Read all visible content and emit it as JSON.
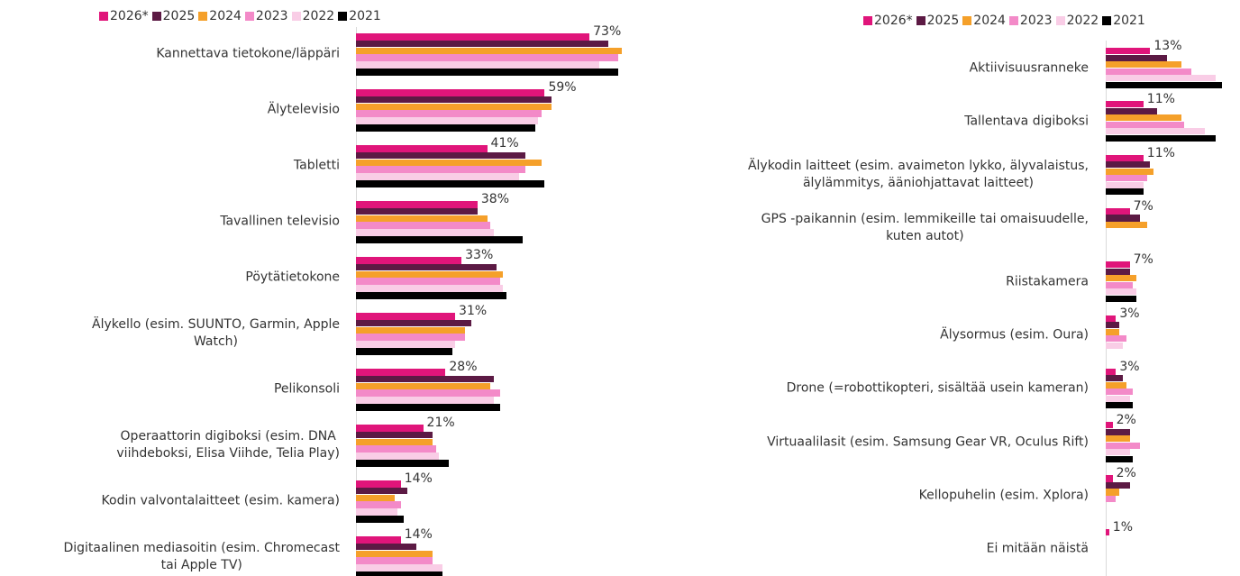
{
  "chart_data": [
    {
      "type": "bar",
      "orientation": "horizontal",
      "xlim": [
        0,
        100
      ],
      "categories": [
        "Kannettava tietokone/läppäri",
        "Älytelevisio",
        "Tabletti",
        "Tavallinen televisio",
        "Pöytätietokone",
        "Älykello (esim. SUUNTO, Garmin, Apple\nWatch)",
        "Pelikonsoli",
        "Operaattorin digiboksi (esim. DNA\nviihdeboksi, Elisa Viihde, Telia Play)",
        "Kodin valvontalaitteet (esim. kamera)",
        "Digitaalinen mediasoitin (esim. Chromecast\ntai Apple TV)"
      ],
      "series": [
        {
          "name": "2026*",
          "color": "#e0157a",
          "values": [
            73,
            59,
            41,
            38,
            33,
            31,
            28,
            21,
            14,
            14
          ],
          "value_labels": [
            "73%",
            "59%",
            "41%",
            "38%",
            "33%",
            "31%",
            "28%",
            "21%",
            "14%",
            "14%"
          ]
        },
        {
          "name": "2025",
          "color": "#5c1a44",
          "values": [
            79,
            61,
            53,
            38,
            44,
            36,
            43,
            24,
            16,
            19
          ]
        },
        {
          "name": "2024",
          "color": "#f5a02a",
          "values": [
            83,
            61,
            58,
            41,
            46,
            34,
            42,
            24,
            12,
            24
          ]
        },
        {
          "name": "2023",
          "color": "#f38ac8",
          "values": [
            82,
            58,
            53,
            42,
            45,
            34,
            45,
            25,
            14,
            24
          ]
        },
        {
          "name": "2022",
          "color": "#f9cde6",
          "values": [
            76,
            57,
            51,
            43,
            46,
            31,
            43,
            26,
            13,
            27
          ]
        },
        {
          "name": "2021",
          "color": "#000000",
          "values": [
            82,
            56,
            59,
            52,
            47,
            30,
            45,
            29,
            15,
            27
          ]
        }
      ]
    },
    {
      "type": "bar",
      "orientation": "horizontal",
      "xlim": [
        0,
        100
      ],
      "categories": [
        "Aktiivisuusranneke",
        "Tallentava digiboksi",
        "Älykodin laitteet (esim. avaimeton lykko, älyvalaistus,\nälylämmitys, ääniohjattavat laitteet)",
        "GPS -paikannin (esim. lemmikeille tai omaisuudelle,\nkuten autot)",
        "Riistakamera",
        "Älysormus (esim. Oura)",
        "Drone (=robottikopteri, sisältää usein kameran)",
        "Virtuaalilasit (esim. Samsung Gear VR, Oculus Rift)",
        "Kellopuhelin (esim. Xplora)",
        "Ei mitään näistä"
      ],
      "series": [
        {
          "name": "2026*",
          "color": "#e0157a",
          "values": [
            13,
            11,
            11,
            7,
            7,
            3,
            3,
            2,
            2,
            1
          ],
          "value_labels": [
            "13%",
            "11%",
            "11%",
            "7%",
            "7%",
            "3%",
            "3%",
            "2%",
            "2%",
            "1%"
          ]
        },
        {
          "name": "2025",
          "color": "#5c1a44",
          "values": [
            18,
            15,
            13,
            10,
            7,
            4,
            5,
            7,
            7,
            null
          ]
        },
        {
          "name": "2024",
          "color": "#f5a02a",
          "values": [
            22,
            22,
            14,
            12,
            9,
            4,
            6,
            7,
            4,
            null
          ]
        },
        {
          "name": "2023",
          "color": "#f38ac8",
          "values": [
            25,
            23,
            12,
            null,
            8,
            6,
            8,
            10,
            3,
            null
          ]
        },
        {
          "name": "2022",
          "color": "#f9cde6",
          "values": [
            32,
            29,
            11,
            null,
            9,
            5,
            7,
            7,
            null,
            null
          ]
        },
        {
          "name": "2021",
          "color": "#000000",
          "values": [
            34,
            32,
            11,
            null,
            9,
            null,
            8,
            8,
            null,
            null
          ]
        }
      ]
    }
  ]
}
